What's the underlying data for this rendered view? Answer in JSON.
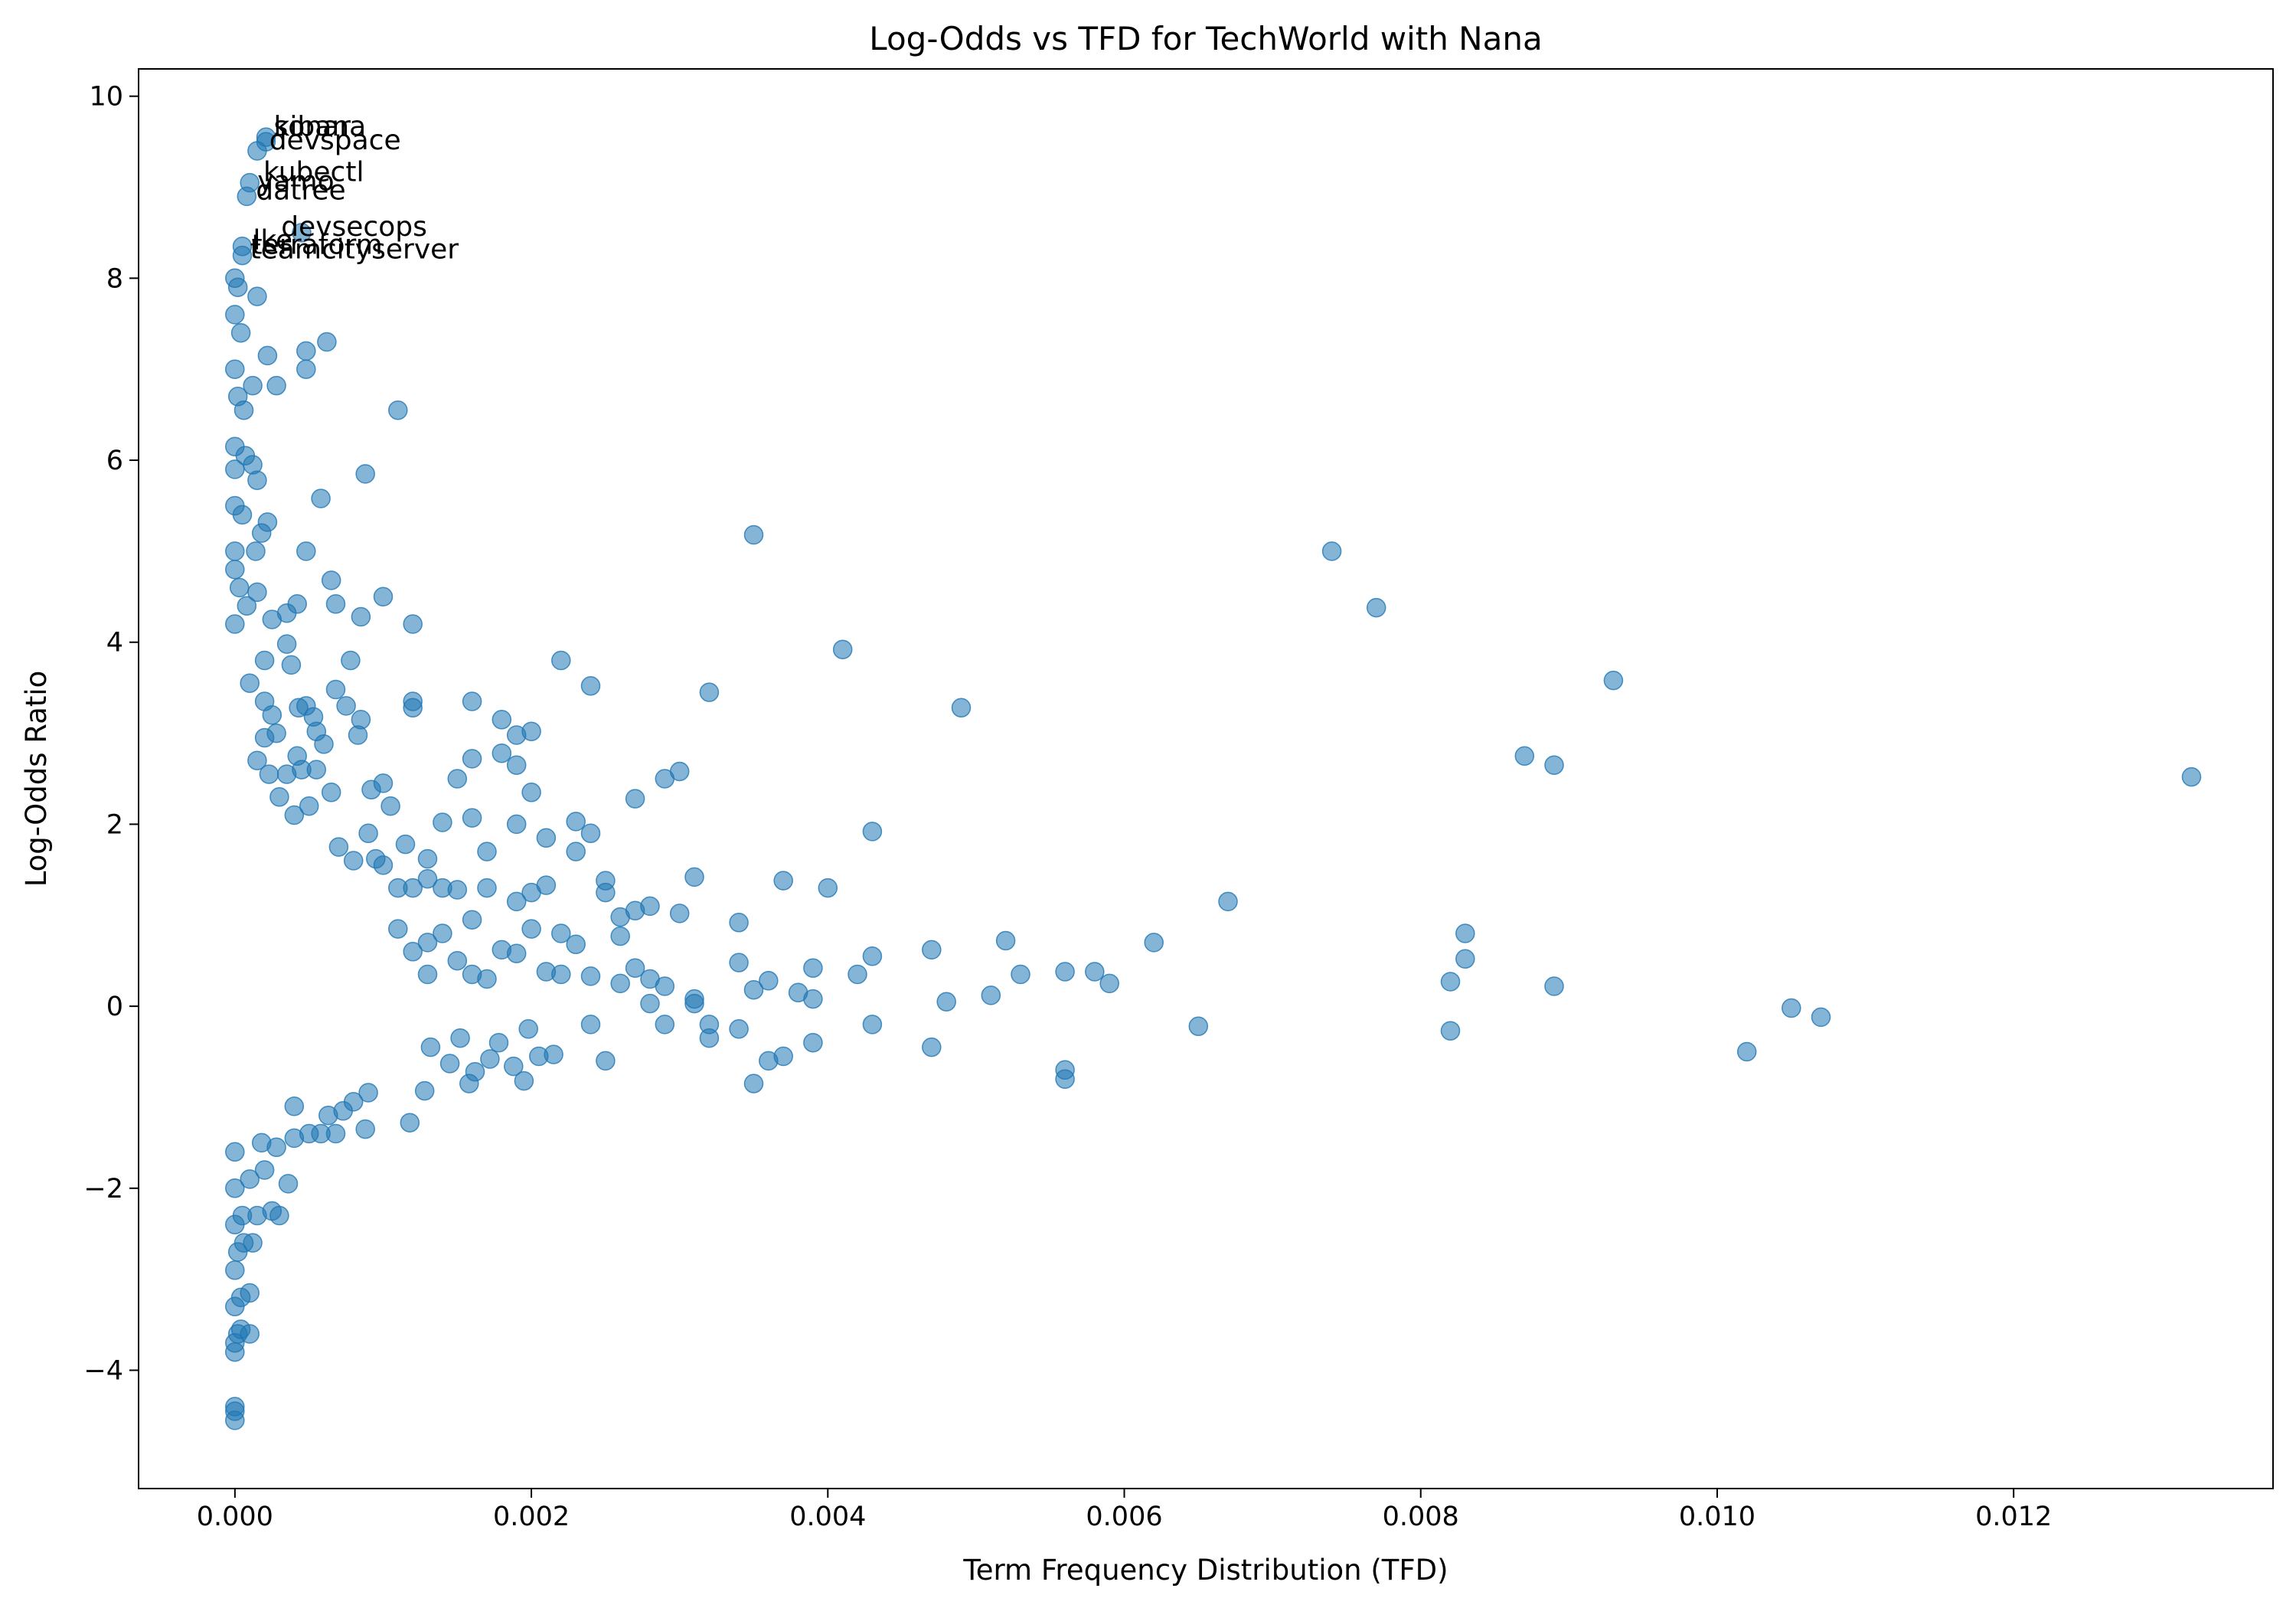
{
  "chart_data": {
    "type": "scatter",
    "title": "Log-Odds vs TFD for TechWorld with Nana",
    "xlabel": "Term Frequency Distribution (TFD)",
    "ylabel": "Log-Odds Ratio",
    "xlim": [
      -0.00065,
      0.01375
    ],
    "ylim": [
      -5.3,
      10.3
    ],
    "xticks": [
      0.0,
      0.002,
      0.004,
      0.006,
      0.008,
      0.01,
      0.012
    ],
    "xtick_labels": [
      "0.000",
      "0.002",
      "0.004",
      "0.006",
      "0.008",
      "0.010",
      "0.012"
    ],
    "yticks": [
      -4,
      -2,
      0,
      2,
      4,
      6,
      8,
      10
    ],
    "ytick_labels": [
      "−4",
      "−2",
      "0",
      "2",
      "4",
      "6",
      "8",
      "10"
    ],
    "grid": false,
    "legend": "none",
    "marker_color": "#1f77b4",
    "marker_alpha": 0.55,
    "annotations": [
      {
        "text": "kibana",
        "x": 0.00021,
        "y": 9.55
      },
      {
        "text": "sonar",
        "x": 0.00021,
        "y": 9.55
      },
      {
        "text": "devspace",
        "x": 0.00018,
        "y": 9.4
      },
      {
        "text": "kubectl",
        "x": 0.00014,
        "y": 9.05
      },
      {
        "text": "yamo",
        "x": 0.0001,
        "y": 8.95
      },
      {
        "text": "datree",
        "x": 9e-05,
        "y": 8.85
      },
      {
        "text": "devsecops",
        "x": 0.00026,
        "y": 8.45
      },
      {
        "text": "lke",
        "x": 7e-05,
        "y": 8.3
      },
      {
        "text": "terraform",
        "x": 6e-05,
        "y": 8.25
      },
      {
        "text": "teamcityserver",
        "x": 5e-05,
        "y": 8.2
      }
    ],
    "points": [
      [
        0.0,
        -4.55
      ],
      [
        0.0,
        -4.45
      ],
      [
        0.0,
        -4.4
      ],
      [
        0.0,
        -3.8
      ],
      [
        0.0,
        -3.7
      ],
      [
        2e-05,
        -3.6
      ],
      [
        4e-05,
        -3.55
      ],
      [
        0.0001,
        -3.6
      ],
      [
        0.0,
        -3.3
      ],
      [
        4e-05,
        -3.2
      ],
      [
        0.0001,
        -3.15
      ],
      [
        0.0,
        -2.9
      ],
      [
        2e-05,
        -2.7
      ],
      [
        6e-05,
        -2.6
      ],
      [
        0.00012,
        -2.6
      ],
      [
        0.0,
        -2.4
      ],
      [
        5e-05,
        -2.3
      ],
      [
        0.00015,
        -2.3
      ],
      [
        0.0003,
        -2.3
      ],
      [
        0.00025,
        -2.25
      ],
      [
        0.0,
        -2.0
      ],
      [
        0.0001,
        -1.9
      ],
      [
        0.0002,
        -1.8
      ],
      [
        0.00036,
        -1.95
      ],
      [
        0.0,
        -1.6
      ],
      [
        0.00018,
        -1.5
      ],
      [
        0.00028,
        -1.55
      ],
      [
        0.0004,
        -1.45
      ],
      [
        0.0005,
        -1.4
      ],
      [
        0.00058,
        -1.4
      ],
      [
        0.00068,
        -1.4
      ],
      [
        0.00088,
        -1.35
      ],
      [
        0.00063,
        -1.2
      ],
      [
        0.00073,
        -1.15
      ],
      [
        0.00118,
        -1.28
      ],
      [
        0.0004,
        -1.1
      ],
      [
        0.0008,
        -1.05
      ],
      [
        0.0009,
        -0.95
      ],
      [
        0.00128,
        -0.93
      ],
      [
        0.00158,
        -0.85
      ],
      [
        0.00195,
        -0.82
      ],
      [
        0.00215,
        -0.53
      ],
      [
        0.00205,
        -0.55
      ],
      [
        0.00188,
        -0.66
      ],
      [
        0.00172,
        -0.58
      ],
      [
        0.00162,
        -0.72
      ],
      [
        0.00145,
        -0.63
      ],
      [
        0.00132,
        -0.45
      ],
      [
        0.00152,
        -0.35
      ],
      [
        0.00178,
        -0.4
      ],
      [
        0.00198,
        -0.25
      ],
      [
        0.0025,
        -0.6
      ],
      [
        0.0024,
        -0.2
      ],
      [
        0.0029,
        -0.2
      ],
      [
        0.0032,
        -0.2
      ],
      [
        0.0034,
        -0.25
      ],
      [
        0.0035,
        -0.85
      ],
      [
        0.0036,
        -0.6
      ],
      [
        0.0037,
        -0.55
      ],
      [
        0.0039,
        -0.4
      ],
      [
        0.0043,
        -0.2
      ],
      [
        0.0047,
        -0.45
      ],
      [
        0.0056,
        -0.8
      ],
      [
        0.0056,
        -0.7
      ],
      [
        0.0065,
        -0.22
      ],
      [
        0.0082,
        -0.27
      ],
      [
        0.0102,
        -0.5
      ],
      [
        0.0105,
        -0.02
      ],
      [
        0.0107,
        -0.12
      ],
      [
        0.0056,
        0.38
      ],
      [
        0.0058,
        0.38
      ],
      [
        0.0059,
        0.25
      ],
      [
        0.0062,
        0.7
      ],
      [
        0.0067,
        1.15
      ],
      [
        0.0082,
        0.27
      ],
      [
        0.0083,
        0.52
      ],
      [
        0.0083,
        0.8
      ],
      [
        0.0089,
        0.22
      ],
      [
        0.0087,
        2.75
      ],
      [
        0.0089,
        2.65
      ],
      [
        0.0093,
        3.58
      ],
      [
        0.0132,
        2.52
      ],
      [
        0.0074,
        5.0
      ],
      [
        0.0077,
        4.38
      ],
      [
        0.0049,
        3.28
      ],
      [
        0.0041,
        3.92
      ],
      [
        0.0043,
        1.92
      ],
      [
        0.0043,
        0.55
      ],
      [
        0.0042,
        0.35
      ],
      [
        0.0047,
        0.62
      ],
      [
        0.0048,
        0.05
      ],
      [
        0.0051,
        0.12
      ],
      [
        0.0052,
        0.72
      ],
      [
        0.0053,
        0.35
      ],
      [
        0.0035,
        5.18
      ],
      [
        0.0032,
        3.45
      ],
      [
        0.0031,
        1.42
      ],
      [
        0.0034,
        0.92
      ],
      [
        0.0034,
        0.48
      ],
      [
        0.0035,
        0.18
      ],
      [
        0.0036,
        0.28
      ],
      [
        0.0037,
        1.38
      ],
      [
        0.0038,
        0.15
      ],
      [
        0.0039,
        0.42
      ],
      [
        0.0039,
        0.08
      ],
      [
        0.004,
        1.3
      ],
      [
        0.003,
        2.58
      ],
      [
        0.0029,
        2.5
      ],
      [
        0.0027,
        2.28
      ],
      [
        0.0028,
        1.1
      ],
      [
        0.0027,
        1.05
      ],
      [
        0.0026,
        0.98
      ],
      [
        0.0025,
        1.25
      ],
      [
        0.0025,
        1.38
      ],
      [
        0.0026,
        0.77
      ],
      [
        0.0026,
        0.25
      ],
      [
        0.0028,
        0.3
      ],
      [
        0.0028,
        0.03
      ],
      [
        0.0029,
        0.22
      ],
      [
        0.003,
        1.02
      ],
      [
        0.0031,
        0.08
      ],
      [
        0.0031,
        0.03
      ],
      [
        0.0032,
        -0.35
      ],
      [
        0.0027,
        0.42
      ],
      [
        0.0024,
        3.52
      ],
      [
        0.0022,
        3.8
      ],
      [
        0.0023,
        2.03
      ],
      [
        0.0024,
        1.9
      ],
      [
        0.0023,
        1.7
      ],
      [
        0.0021,
        1.85
      ],
      [
        0.0021,
        1.33
      ],
      [
        0.002,
        1.25
      ],
      [
        0.0022,
        0.8
      ],
      [
        0.0023,
        0.68
      ],
      [
        0.0024,
        0.33
      ],
      [
        0.0022,
        0.35
      ],
      [
        0.0021,
        0.38
      ],
      [
        0.002,
        0.85
      ],
      [
        0.0019,
        1.15
      ],
      [
        0.0019,
        0.58
      ],
      [
        0.0018,
        0.62
      ],
      [
        0.0017,
        0.3
      ],
      [
        0.0016,
        0.35
      ],
      [
        0.0016,
        0.95
      ],
      [
        0.0017,
        1.3
      ],
      [
        0.0015,
        1.28
      ],
      [
        0.0014,
        1.3
      ],
      [
        0.0014,
        0.8
      ],
      [
        0.0015,
        0.5
      ],
      [
        0.0013,
        0.7
      ],
      [
        0.0013,
        0.35
      ],
      [
        0.0012,
        0.6
      ],
      [
        0.0011,
        0.85
      ],
      [
        0.0011,
        1.3
      ],
      [
        0.0012,
        1.3
      ],
      [
        0.0013,
        1.4
      ],
      [
        0.0013,
        1.62
      ],
      [
        0.0014,
        2.02
      ],
      [
        0.0015,
        2.5
      ],
      [
        0.0016,
        2.07
      ],
      [
        0.0016,
        2.72
      ],
      [
        0.0016,
        3.35
      ],
      [
        0.0018,
        2.78
      ],
      [
        0.0018,
        3.15
      ],
      [
        0.0019,
        2.65
      ],
      [
        0.0019,
        2.98
      ],
      [
        0.002,
        3.02
      ],
      [
        0.0019,
        2.0
      ],
      [
        0.002,
        2.35
      ],
      [
        0.0017,
        1.7
      ],
      [
        0.0011,
        6.55
      ],
      [
        0.00088,
        5.85
      ],
      [
        0.00058,
        5.58
      ],
      [
        0.00048,
        5.0
      ],
      [
        0.00065,
        4.68
      ],
      [
        0.001,
        4.5
      ],
      [
        0.0012,
        4.2
      ],
      [
        0.00085,
        4.28
      ],
      [
        0.00068,
        4.42
      ],
      [
        0.00078,
        3.8
      ],
      [
        0.00068,
        3.48
      ],
      [
        0.00075,
        3.3
      ],
      [
        0.00083,
        2.98
      ],
      [
        0.00085,
        3.15
      ],
      [
        0.00092,
        2.38
      ],
      [
        0.001,
        2.45
      ],
      [
        0.00105,
        2.2
      ],
      [
        0.00115,
        1.78
      ],
      [
        0.0012,
        3.28
      ],
      [
        0.0012,
        3.35
      ],
      [
        0.0009,
        1.9
      ],
      [
        0.0008,
        1.6
      ],
      [
        0.0007,
        1.75
      ],
      [
        0.00095,
        1.62
      ],
      [
        0.001,
        1.55
      ],
      [
        0.00062,
        7.3
      ],
      [
        0.00048,
        7.2
      ],
      [
        0.00048,
        7.0
      ],
      [
        0.00022,
        7.15
      ],
      [
        0.00028,
        6.82
      ],
      [
        0.00012,
        6.82
      ],
      [
        0.00015,
        7.8
      ],
      [
        8e-05,
        8.9
      ],
      [
        0.0001,
        9.05
      ],
      [
        0.00015,
        9.4
      ],
      [
        0.00021,
        9.55
      ],
      [
        0.00021,
        9.5
      ],
      [
        0.00045,
        8.5
      ],
      [
        5e-05,
        8.35
      ],
      [
        5e-05,
        8.25
      ],
      [
        0.0,
        8.0
      ],
      [
        2e-05,
        7.9
      ],
      [
        0.0,
        7.6
      ],
      [
        4e-05,
        7.4
      ],
      [
        0.0,
        7.0
      ],
      [
        2e-05,
        6.7
      ],
      [
        0.0,
        6.15
      ],
      [
        0.0,
        5.9
      ],
      [
        6e-05,
        6.55
      ],
      [
        7e-05,
        6.05
      ],
      [
        0.00012,
        5.95
      ],
      [
        0.00015,
        5.78
      ],
      [
        5e-05,
        5.4
      ],
      [
        0.0,
        5.5
      ],
      [
        0.00022,
        5.32
      ],
      [
        0.00018,
        5.2
      ],
      [
        0.00014,
        5.0
      ],
      [
        0.0,
        5.0
      ],
      [
        0.0,
        4.8
      ],
      [
        3e-05,
        4.6
      ],
      [
        8e-05,
        4.4
      ],
      [
        0.0,
        4.2
      ],
      [
        0.00015,
        4.55
      ],
      [
        0.00025,
        4.25
      ],
      [
        0.00035,
        4.32
      ],
      [
        0.00042,
        4.42
      ],
      [
        0.00035,
        3.98
      ],
      [
        0.00038,
        3.75
      ],
      [
        0.0002,
        3.8
      ],
      [
        0.0001,
        3.55
      ],
      [
        0.0002,
        3.35
      ],
      [
        0.00025,
        3.2
      ],
      [
        0.00043,
        3.28
      ],
      [
        0.00048,
        3.3
      ],
      [
        0.00053,
        3.18
      ],
      [
        0.00055,
        3.02
      ],
      [
        0.0006,
        2.88
      ],
      [
        0.00042,
        2.75
      ],
      [
        0.00035,
        2.55
      ],
      [
        0.00045,
        2.6
      ],
      [
        0.00055,
        2.6
      ],
      [
        0.00065,
        2.35
      ],
      [
        0.0005,
        2.2
      ],
      [
        0.0004,
        2.1
      ],
      [
        0.0003,
        2.3
      ],
      [
        0.00023,
        2.55
      ],
      [
        0.00015,
        2.7
      ],
      [
        0.0002,
        2.95
      ],
      [
        0.00028,
        3.0
      ]
    ]
  }
}
